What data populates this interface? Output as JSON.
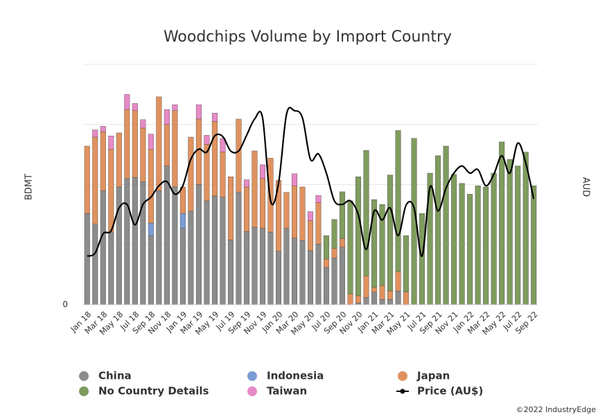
{
  "chart_data": {
    "type": "bar",
    "title": "Woodchips Volume by Import Country",
    "y_label": "BDMT",
    "y2_label": "AUD",
    "footer": "©2022 IndustryEdge",
    "categories": [
      "Jan 18",
      null,
      "Mar 18",
      null,
      "May 18",
      null,
      "Jul 18",
      null,
      "Sep 18",
      null,
      "Nov 18",
      null,
      "Jan 19",
      null,
      "Mar 19",
      null,
      "May 19",
      null,
      "Jul 19",
      null,
      "Sep 19",
      null,
      "Nov 19",
      null,
      "Jan 20",
      null,
      "Mar 20",
      null,
      "May 20",
      null,
      "Jul 20",
      null,
      "Sep 20",
      null,
      "Nov 20",
      null,
      "Jan 21",
      null,
      "Mar 21",
      null,
      "May 21",
      null,
      "Jul 21",
      null,
      "Sep 21",
      null,
      "Nov 21",
      null,
      "Jan 22",
      null,
      "Mar 22",
      null,
      "May 22",
      null,
      "Jul 22",
      null,
      "Sep 22"
    ],
    "ylim": [
      0,
      4
    ],
    "yticks": [
      0
    ],
    "ygrid": [
      1,
      2,
      3,
      4
    ],
    "y2lim": [
      0,
      4
    ],
    "stacked": true,
    "series": [
      {
        "name": "China",
        "color": "#8c8c8c",
        "values": [
          1.52,
          1.34,
          1.9,
          1.21,
          1.96,
          2.1,
          2.12,
          2.05,
          1.15,
          1.9,
          2.31,
          1.96,
          1.27,
          1.56,
          2.0,
          1.73,
          1.81,
          1.79,
          1.08,
          1.87,
          1.22,
          1.29,
          1.27,
          1.21,
          0.89,
          1.27,
          1.11,
          1.07,
          0.9,
          1.01,
          0.62,
          0.78,
          0.96,
          0,
          0.03,
          0.12,
          0.21,
          0.09,
          0.09,
          0.23,
          0,
          0,
          0,
          0,
          0,
          0,
          0,
          0,
          0,
          0,
          0,
          0,
          0,
          0,
          0,
          0,
          0
        ]
      },
      {
        "name": "Indonesia",
        "color": "#7b9bd6",
        "values": [
          0,
          0,
          0,
          0,
          0,
          0,
          0,
          0,
          0.21,
          0,
          0,
          0,
          0.25,
          0,
          0,
          0,
          0,
          0,
          0,
          0,
          0,
          0,
          0,
          0,
          0,
          0,
          0,
          0,
          0,
          0,
          0,
          0,
          0,
          0,
          0,
          0,
          0,
          0,
          0,
          0,
          0,
          0,
          0,
          0,
          0,
          0,
          0,
          0,
          0,
          0,
          0,
          0,
          0,
          0,
          0,
          0,
          0
        ]
      },
      {
        "name": "Japan",
        "color": "#e0925e",
        "values": [
          1.12,
          1.45,
          0.98,
          1.38,
          0.9,
          1.15,
          1.11,
          0.89,
          1.23,
          1.56,
          0.69,
          1.27,
          0.44,
          1.23,
          1.09,
          0.94,
          1.24,
          0.75,
          1.05,
          1.22,
          0.74,
          1.27,
          0.83,
          1.23,
          1.18,
          0.6,
          0.87,
          0.89,
          0.5,
          0.69,
          0.14,
          0.16,
          0.14,
          0.18,
          0.12,
          0.36,
          0.08,
          0.23,
          0.14,
          0.32,
          0.21,
          0,
          0,
          0,
          0,
          0,
          0,
          0,
          0,
          0,
          0,
          0,
          0,
          0,
          0,
          0,
          0
        ]
      },
      {
        "name": "No Country Details",
        "color": "#7f9c5e",
        "values": [
          0,
          0,
          0,
          0,
          0,
          0,
          0,
          0,
          0,
          0,
          0,
          0,
          0,
          0,
          0,
          0,
          0,
          0,
          0,
          0,
          0,
          0,
          0,
          0,
          0,
          0,
          0,
          0,
          0,
          0,
          0.39,
          0.48,
          0.78,
          1.55,
          1.98,
          2.09,
          1.46,
          1.35,
          1.93,
          2.35,
          0.94,
          2.77,
          1.52,
          2.19,
          2.48,
          2.64,
          2.17,
          2.02,
          1.84,
          1.98,
          1.96,
          2.19,
          2.71,
          2.42,
          2.31,
          2.54,
          1.98
        ]
      },
      {
        "name": "Taiwan",
        "color": "#e88ac8",
        "values": [
          0,
          0.12,
          0.09,
          0.22,
          0,
          0.25,
          0.12,
          0.14,
          0.25,
          0,
          0.25,
          0.1,
          0,
          0,
          0.24,
          0.15,
          0.14,
          0.23,
          0,
          0,
          0.12,
          0,
          0.23,
          0,
          0,
          0,
          0.2,
          0,
          0.15,
          0.12,
          0,
          0,
          0,
          0,
          0,
          0,
          0,
          0,
          0,
          0,
          0,
          0,
          0,
          0,
          0,
          0,
          0,
          0,
          0,
          0,
          0,
          0,
          0,
          0,
          0,
          0,
          0
        ]
      },
      {
        "name": "Price (AU$)",
        "color": "#000000",
        "type": "line",
        "axis": "y2",
        "values": [
          0.81,
          0.86,
          1.18,
          1.23,
          1.61,
          1.67,
          1.33,
          1.67,
          1.79,
          1.98,
          2.05,
          1.84,
          1.98,
          2.42,
          2.59,
          2.54,
          2.81,
          2.8,
          2.56,
          2.56,
          2.82,
          3.09,
          3.11,
          1.73,
          2.02,
          3.17,
          3.23,
          3.11,
          2.42,
          2.51,
          2.19,
          1.73,
          1.67,
          1.73,
          1.5,
          0.92,
          1.56,
          1.41,
          1.61,
          1.15,
          1.66,
          1.61,
          0.81,
          1.96,
          1.56,
          1.94,
          2.19,
          2.31,
          2.19,
          2.25,
          1.98,
          2.17,
          2.48,
          2.19,
          2.69,
          2.36,
          1.76
        ]
      }
    ]
  }
}
